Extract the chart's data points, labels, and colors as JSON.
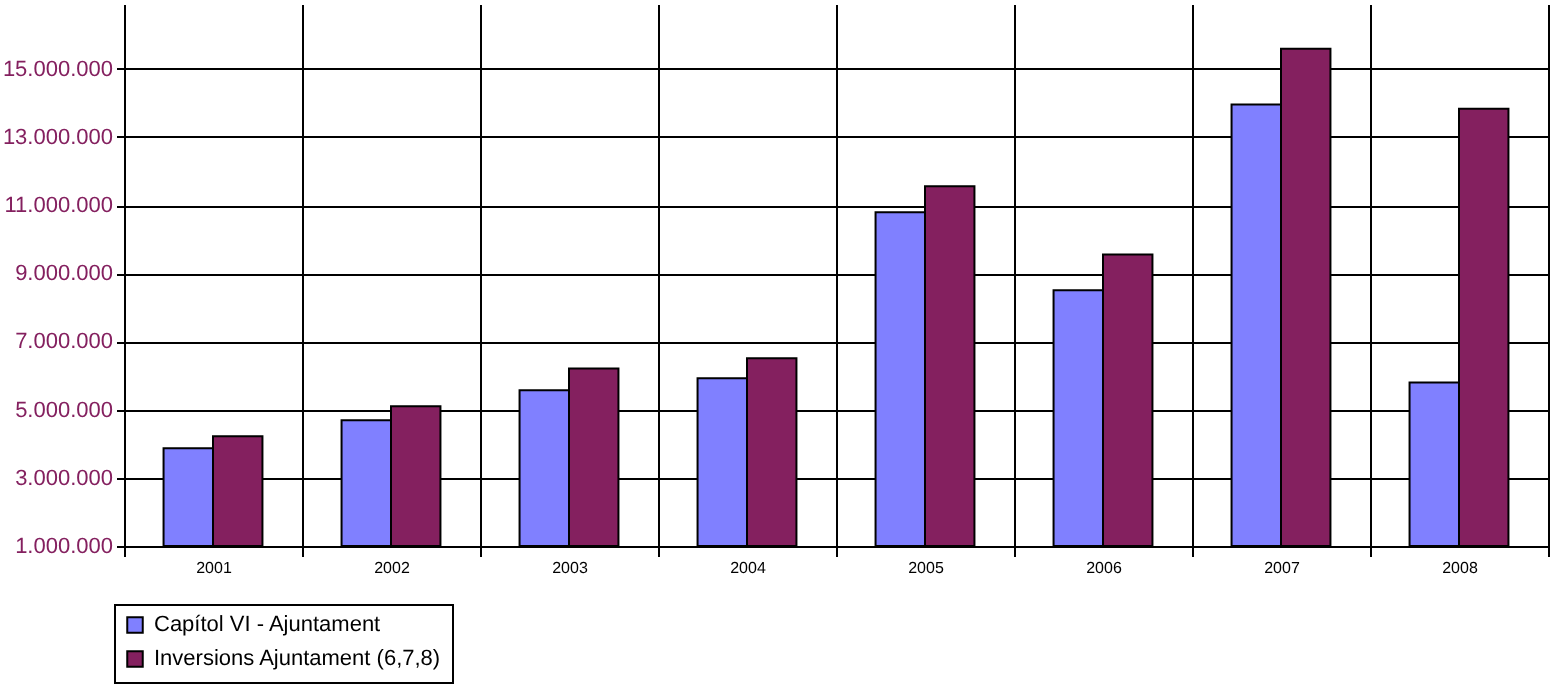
{
  "chart_data": {
    "type": "bar",
    "categories": [
      "2001",
      "2002",
      "2003",
      "2004",
      "2005",
      "2006",
      "2007",
      "2008"
    ],
    "series": [
      {
        "name": "Capítol VI - Ajuntament",
        "color": "#8080ff",
        "values": [
          3870000,
          4690000,
          5570000,
          5920000,
          10790000,
          8500000,
          13950000,
          5800000
        ]
      },
      {
        "name": "Inversions Ajuntament (6,7,8)",
        "color": "#84205f",
        "values": [
          4220000,
          5100000,
          6210000,
          6510000,
          11550000,
          9550000,
          15590000,
          13830000
        ]
      }
    ],
    "ylim": [
      1000000,
      16900000
    ],
    "yticks": [
      {
        "value": 1000000,
        "label": "1.000.000"
      },
      {
        "value": 3000000,
        "label": "3.000.000"
      },
      {
        "value": 5000000,
        "label": "5.000.000"
      },
      {
        "value": 7000000,
        "label": "7.000.000"
      },
      {
        "value": 9000000,
        "label": "9.000.000"
      },
      {
        "value": 11000000,
        "label": "11.000.000"
      },
      {
        "value": 13000000,
        "label": "13.000.000"
      },
      {
        "value": 15000000,
        "label": "15.000.000"
      }
    ],
    "grid": true,
    "legend": "bottom left"
  }
}
